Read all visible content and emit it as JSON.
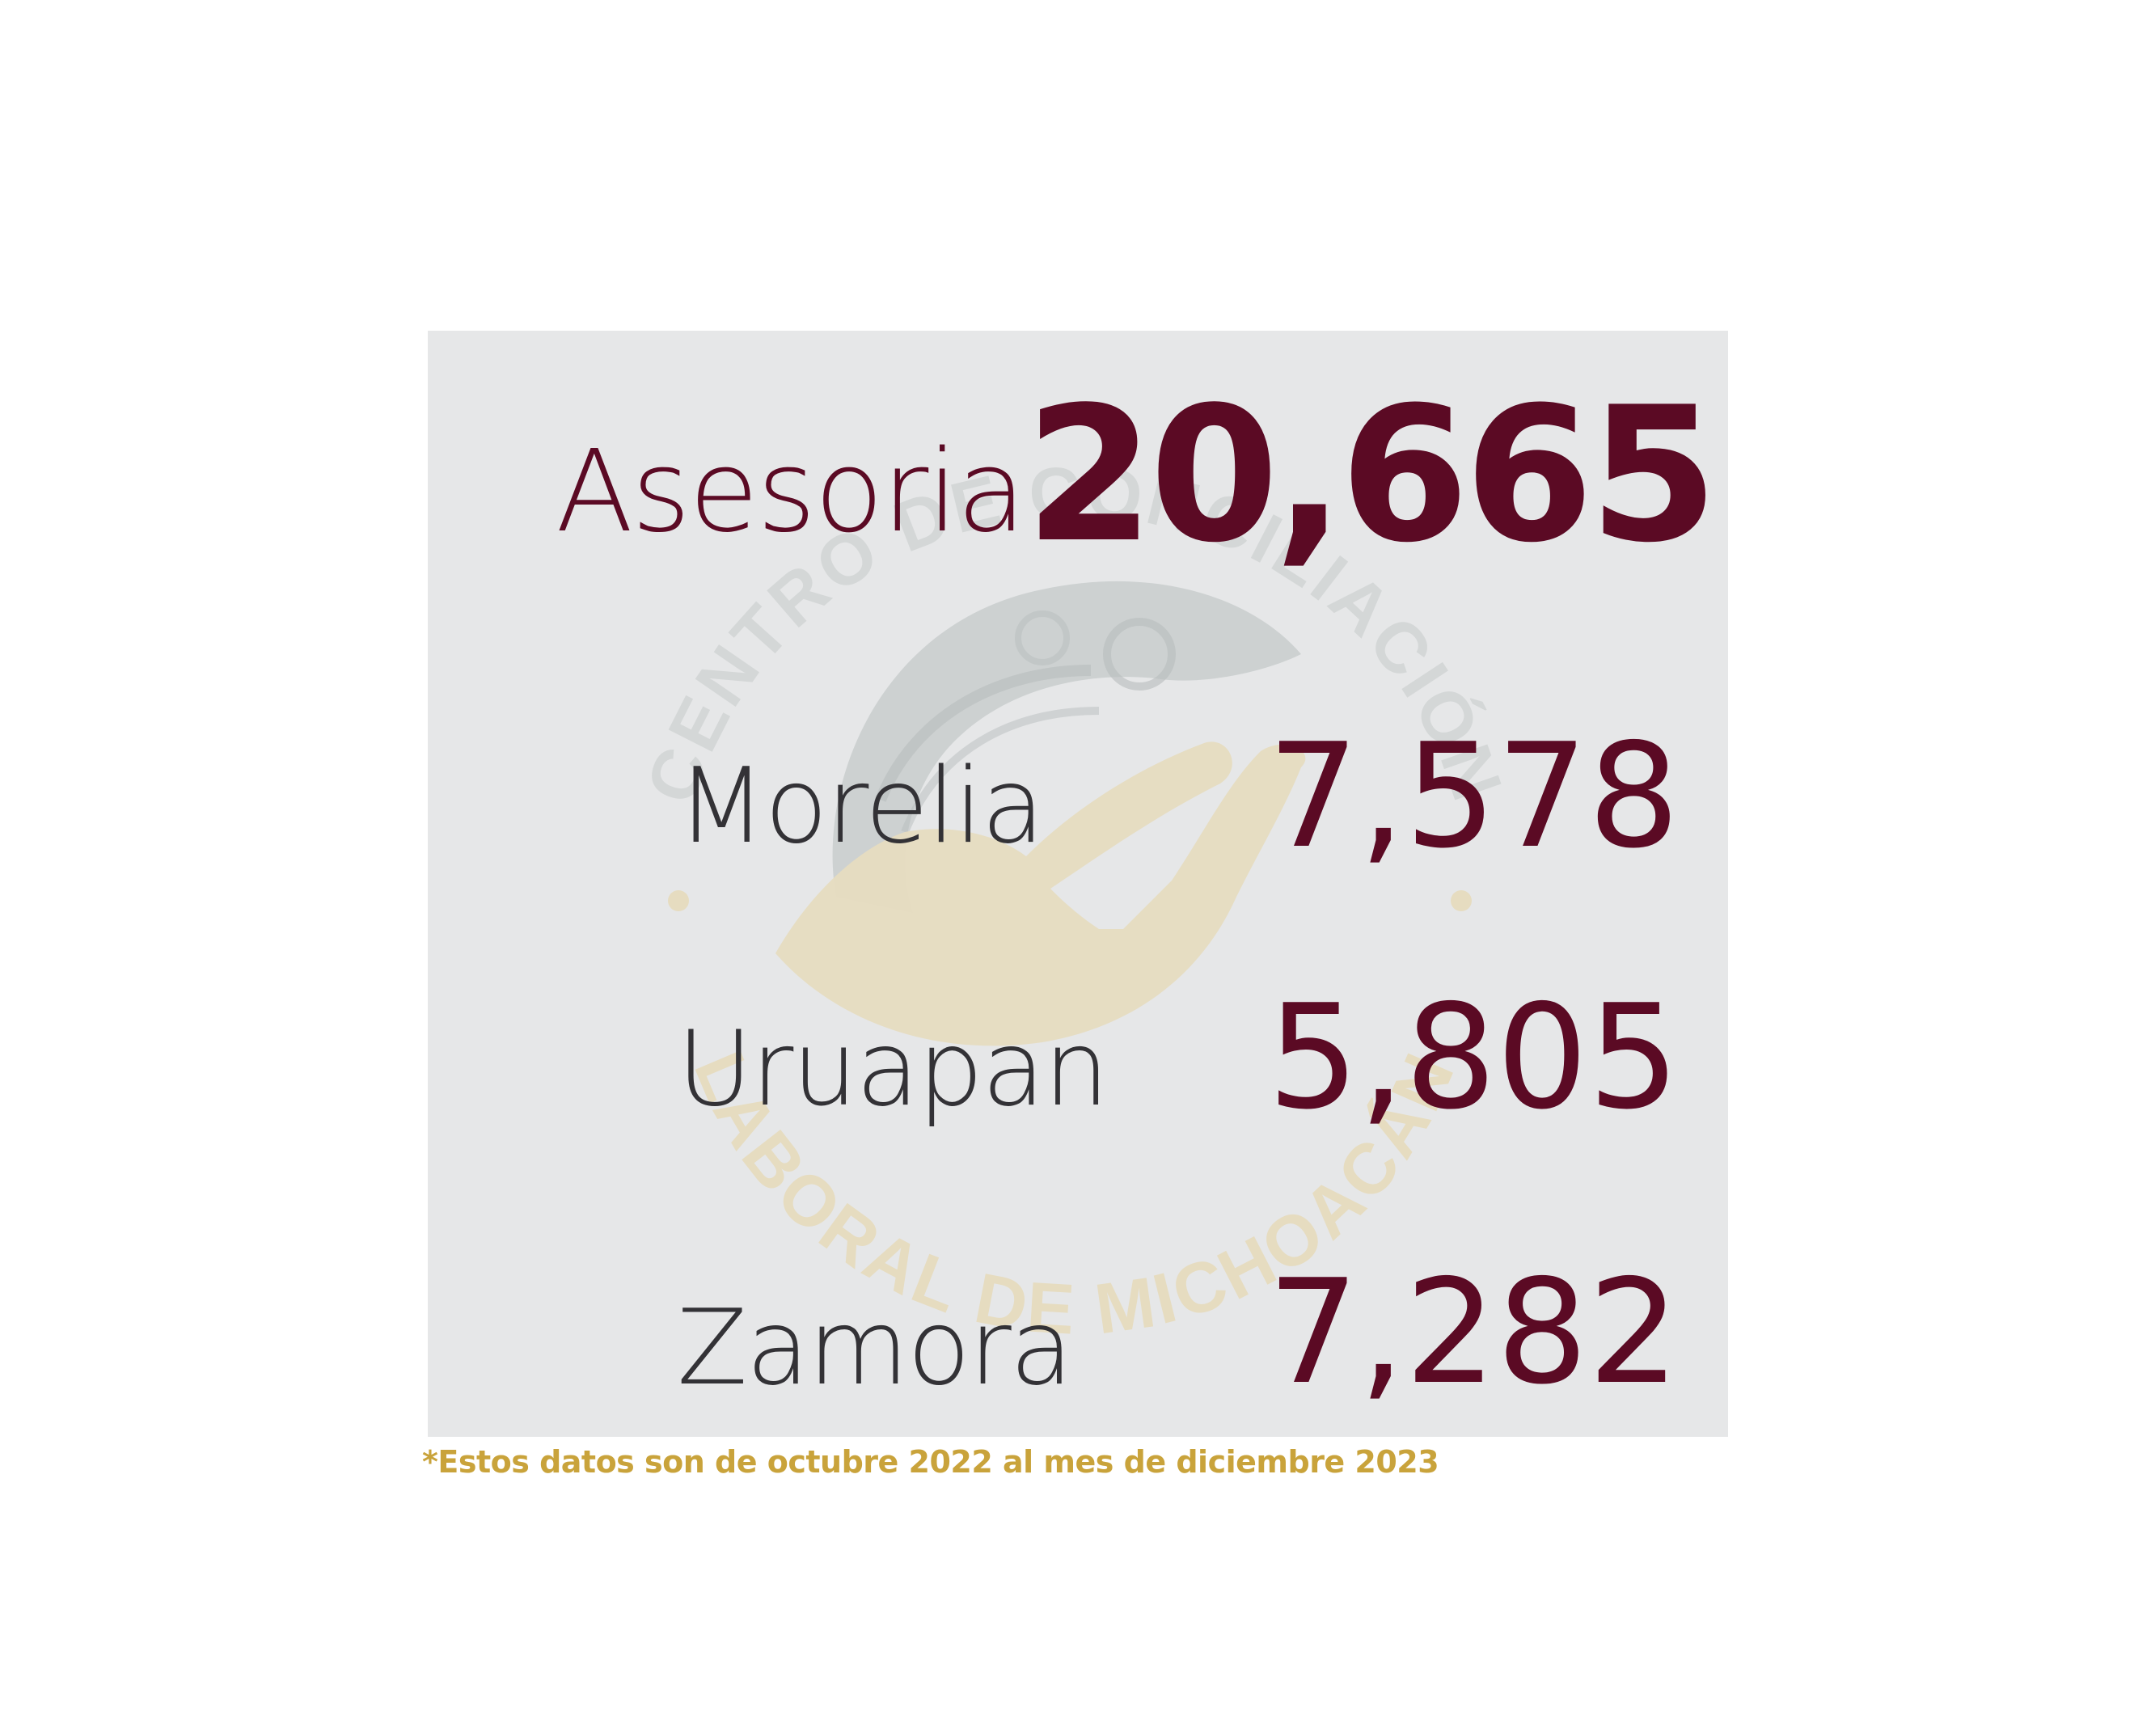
{
  "main": {
    "label": "Asesoria",
    "value": "20,665"
  },
  "cities": [
    {
      "label": "Morelia",
      "value": "7,578"
    },
    {
      "label": "Uruapan",
      "value": "5,805"
    },
    {
      "label": "Zamora",
      "value": "7,282"
    }
  ],
  "footnote": "*Estos datos son de octubre 2022 al mes de diciembre 2023",
  "watermark": {
    "top_text": "CENTRO DE CONCILIACIÓN",
    "bottom_text": "LABORAL DE MICHOACÁN"
  },
  "colors": {
    "accent": "#5b0a24",
    "label_dark": "#333236",
    "panel_bg": "#e6e7e8",
    "footnote_gold": "#c9a33b",
    "watermark_gray": "#c8cccc",
    "watermark_gold": "#e6dcc0"
  }
}
